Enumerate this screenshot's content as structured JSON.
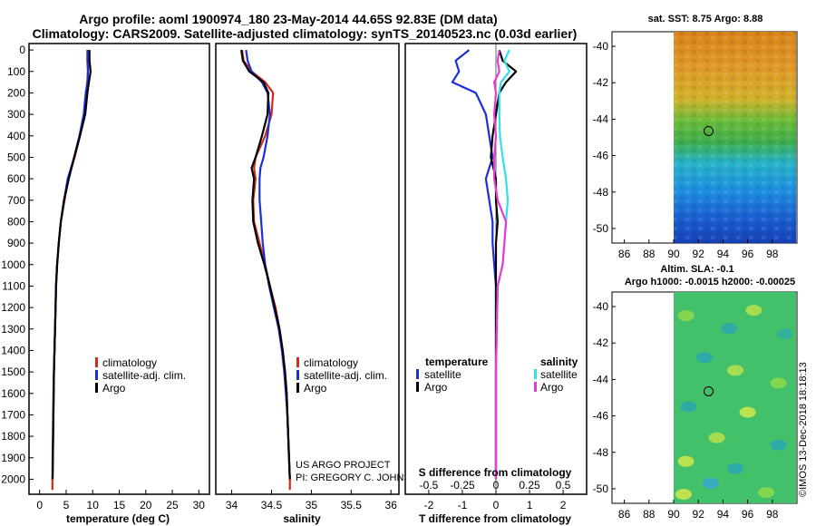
{
  "title_line1": "Argo profile: aoml 1900974_180 23-May-2014 44.65S 92.83E (DM data)",
  "title_line2": "Climatology: CARS2009. Satellite-adjusted climatology: synTS_20140523.nc (0.03d earlier)",
  "depth_ticks": [
    "0",
    "100",
    "200",
    "300",
    "400",
    "500",
    "600",
    "700",
    "800",
    "900",
    "1000",
    "1100",
    "1200",
    "1300",
    "1400",
    "1500",
    "1600",
    "1700",
    "1800",
    "1900",
    "2000"
  ],
  "colors": {
    "climatology": "#d42a1a",
    "satellite": "#1a2fd8",
    "argo": "#000000",
    "sat_s": "#33e0e8",
    "argo_s": "#e83ad8",
    "circle": "#000000"
  },
  "legend_main": [
    "climatology",
    "satellite-adj. clim.",
    "Argo"
  ],
  "diff_legend": {
    "temperature_title": "temperature",
    "salinity_title": "salinity",
    "satellite": "satellite",
    "argo": "Argo"
  },
  "project_credit": [
    "US ARGO PROJECT",
    "PI: GREGORY C. JOHNSON"
  ],
  "imos_credit": "©IMOS 13-Dec-2018 18:18:13",
  "chart_data": [
    {
      "type": "line",
      "title": "",
      "xlabel": "temperature (deg C)",
      "ylabel": "depth",
      "xlim": [
        -2,
        32
      ],
      "ylim": [
        2070,
        -30
      ],
      "xticks": [
        "0",
        "5",
        "10",
        "15",
        "20",
        "25",
        "30"
      ],
      "series": [
        {
          "name": "climatology",
          "points": [
            [
              9.2,
              0
            ],
            [
              9.2,
              50
            ],
            [
              9.1,
              100
            ],
            [
              9.0,
              150
            ],
            [
              8.8,
              200
            ],
            [
              8.4,
              300
            ],
            [
              7.6,
              400
            ],
            [
              6.6,
              500
            ],
            [
              5.4,
              600
            ],
            [
              4.7,
              700
            ],
            [
              4.0,
              800
            ],
            [
              3.6,
              900
            ],
            [
              3.3,
              1000
            ],
            [
              3.1,
              1100
            ],
            [
              3.0,
              1200
            ],
            [
              2.9,
              1300
            ],
            [
              2.8,
              1400
            ],
            [
              2.7,
              1500
            ],
            [
              2.6,
              1600
            ],
            [
              2.55,
              1700
            ],
            [
              2.5,
              1800
            ],
            [
              2.45,
              1900
            ],
            [
              2.4,
              2000
            ],
            [
              2.4,
              2050
            ]
          ]
        },
        {
          "name": "satellite-adj. clim.",
          "points": [
            [
              9.0,
              0
            ],
            [
              9.0,
              50
            ],
            [
              9.1,
              100
            ],
            [
              9.0,
              150
            ],
            [
              8.7,
              200
            ],
            [
              8.3,
              300
            ],
            [
              7.5,
              400
            ],
            [
              6.5,
              500
            ],
            [
              5.3,
              600
            ],
            [
              4.6,
              700
            ],
            [
              4.0,
              800
            ],
            [
              3.6,
              900
            ],
            [
              3.3,
              1000
            ],
            [
              3.1,
              1100
            ],
            [
              3.0,
              1200
            ],
            [
              2.9,
              1300
            ],
            [
              2.8,
              1400
            ],
            [
              2.7,
              1500
            ],
            [
              2.65,
              1600
            ],
            [
              2.6,
              1700
            ],
            [
              2.55,
              1800
            ],
            [
              2.5,
              1900
            ],
            [
              2.45,
              2000
            ]
          ]
        },
        {
          "name": "Argo",
          "points": [
            [
              9.4,
              0
            ],
            [
              9.4,
              50
            ],
            [
              9.6,
              100
            ],
            [
              9.3,
              150
            ],
            [
              9.0,
              200
            ],
            [
              8.6,
              300
            ],
            [
              7.6,
              400
            ],
            [
              6.5,
              500
            ],
            [
              5.5,
              600
            ],
            [
              4.6,
              700
            ],
            [
              4.0,
              800
            ],
            [
              3.6,
              900
            ],
            [
              3.3,
              1000
            ],
            [
              3.1,
              1100
            ],
            [
              3.0,
              1200
            ],
            [
              2.9,
              1300
            ],
            [
              2.8,
              1400
            ],
            [
              2.7,
              1500
            ],
            [
              2.65,
              1600
            ],
            [
              2.6,
              1700
            ],
            [
              2.55,
              1800
            ],
            [
              2.5,
              1900
            ],
            [
              2.45,
              2000
            ]
          ]
        }
      ]
    },
    {
      "type": "line",
      "title": "",
      "xlabel": "salinity",
      "ylabel": "depth",
      "xlim": [
        33.8,
        36.1
      ],
      "ylim": [
        2070,
        -30
      ],
      "xticks": [
        "34",
        "34.5",
        "35",
        "35.5",
        "36"
      ],
      "series": [
        {
          "name": "climatology",
          "points": [
            [
              34.13,
              0
            ],
            [
              34.15,
              50
            ],
            [
              34.25,
              100
            ],
            [
              34.42,
              150
            ],
            [
              34.52,
              200
            ],
            [
              34.5,
              300
            ],
            [
              34.42,
              400
            ],
            [
              34.3,
              500
            ],
            [
              34.28,
              550
            ],
            [
              34.3,
              600
            ],
            [
              34.27,
              700
            ],
            [
              34.28,
              800
            ],
            [
              34.35,
              900
            ],
            [
              34.42,
              1000
            ],
            [
              34.48,
              1100
            ],
            [
              34.55,
              1200
            ],
            [
              34.6,
              1300
            ],
            [
              34.64,
              1400
            ],
            [
              34.67,
              1500
            ],
            [
              34.69,
              1600
            ],
            [
              34.7,
              1700
            ],
            [
              34.71,
              1800
            ],
            [
              34.72,
              1900
            ],
            [
              34.73,
              2000
            ],
            [
              34.73,
              2050
            ]
          ]
        },
        {
          "name": "satellite-adj. clim.",
          "points": [
            [
              34.18,
              0
            ],
            [
              34.2,
              50
            ],
            [
              34.25,
              100
            ],
            [
              34.38,
              150
            ],
            [
              34.45,
              200
            ],
            [
              34.48,
              300
            ],
            [
              34.45,
              400
            ],
            [
              34.4,
              500
            ],
            [
              34.36,
              550
            ],
            [
              34.35,
              600
            ],
            [
              34.35,
              700
            ],
            [
              34.37,
              800
            ],
            [
              34.39,
              900
            ],
            [
              34.42,
              1000
            ],
            [
              34.47,
              1100
            ],
            [
              34.53,
              1200
            ],
            [
              34.59,
              1300
            ],
            [
              34.63,
              1400
            ],
            [
              34.66,
              1500
            ],
            [
              34.68,
              1600
            ],
            [
              34.7,
              1700
            ],
            [
              34.71,
              1800
            ],
            [
              34.72,
              1900
            ],
            [
              34.73,
              2000
            ]
          ]
        },
        {
          "name": "Argo",
          "points": [
            [
              34.12,
              0
            ],
            [
              34.14,
              50
            ],
            [
              34.22,
              100
            ],
            [
              34.4,
              150
            ],
            [
              34.46,
              200
            ],
            [
              34.45,
              300
            ],
            [
              34.38,
              400
            ],
            [
              34.3,
              500
            ],
            [
              34.25,
              550
            ],
            [
              34.28,
              600
            ],
            [
              34.26,
              700
            ],
            [
              34.27,
              800
            ],
            [
              34.33,
              900
            ],
            [
              34.41,
              1000
            ],
            [
              34.48,
              1100
            ],
            [
              34.54,
              1200
            ],
            [
              34.6,
              1300
            ],
            [
              34.64,
              1400
            ],
            [
              34.67,
              1500
            ],
            [
              34.69,
              1600
            ],
            [
              34.7,
              1700
            ],
            [
              34.71,
              1800
            ],
            [
              34.72,
              1900
            ],
            [
              34.73,
              2000
            ]
          ]
        }
      ]
    },
    {
      "type": "line",
      "title": "",
      "xlabel": "T difference from climatology",
      "xlabel_top": "S difference from climatology",
      "ylabel": "depth",
      "xlim": [
        -2.7,
        2.7
      ],
      "ylim": [
        2070,
        -30
      ],
      "xticks": [
        "-2",
        "-1",
        "0",
        "1",
        "2"
      ],
      "xticks_top": [
        "-0.5",
        "-0.25",
        "0",
        "0.25",
        "0.5"
      ],
      "series": [
        {
          "name": "temperature satellite",
          "points": [
            [
              -0.8,
              0
            ],
            [
              -1.2,
              50
            ],
            [
              -1.1,
              100
            ],
            [
              -1.3,
              150
            ],
            [
              -0.6,
              200
            ],
            [
              -0.3,
              300
            ],
            [
              -0.2,
              400
            ],
            [
              -0.1,
              500
            ],
            [
              -0.3,
              600
            ],
            [
              -0.2,
              700
            ],
            [
              -0.1,
              800
            ],
            [
              -0.1,
              900
            ],
            [
              -0.05,
              1000
            ],
            [
              0,
              1100
            ],
            [
              0,
              1500
            ],
            [
              0,
              2000
            ]
          ]
        },
        {
          "name": "temperature Argo",
          "points": [
            [
              0.1,
              0
            ],
            [
              0.2,
              50
            ],
            [
              0.6,
              100
            ],
            [
              0.3,
              150
            ],
            [
              0.1,
              200
            ],
            [
              0.0,
              300
            ],
            [
              -0.1,
              400
            ],
            [
              -0.15,
              500
            ],
            [
              0,
              600
            ],
            [
              0.0,
              700
            ],
            [
              0.05,
              800
            ],
            [
              0.0,
              900
            ],
            [
              0.0,
              1000
            ],
            [
              0.0,
              1500
            ],
            [
              0.0,
              2000
            ]
          ]
        },
        {
          "name": "salinity satellite",
          "points": [
            [
              0.4,
              0
            ],
            [
              0.25,
              50
            ],
            [
              0.4,
              100
            ],
            [
              0.15,
              150
            ],
            [
              0.1,
              200
            ],
            [
              0.1,
              300
            ],
            [
              0.12,
              400
            ],
            [
              0.2,
              500
            ],
            [
              0.3,
              600
            ],
            [
              0.35,
              700
            ],
            [
              0.3,
              800
            ],
            [
              0.25,
              900
            ],
            [
              0.2,
              1000
            ],
            [
              0.05,
              1100
            ],
            [
              0,
              1500
            ],
            [
              0,
              2000
            ]
          ]
        },
        {
          "name": "salinity Argo",
          "points": [
            [
              0.1,
              0
            ],
            [
              0.05,
              50
            ],
            [
              0.1,
              100
            ],
            [
              -0.05,
              150
            ],
            [
              0.0,
              200
            ],
            [
              -0.05,
              300
            ],
            [
              0.0,
              400
            ],
            [
              -0.05,
              500
            ],
            [
              -0.05,
              600
            ],
            [
              0.05,
              700
            ],
            [
              0.3,
              800
            ],
            [
              0.25,
              900
            ],
            [
              0.2,
              1000
            ],
            [
              0.05,
              1100
            ],
            [
              0,
              1500
            ],
            [
              0,
              2000
            ]
          ]
        }
      ]
    },
    {
      "type": "heatmap",
      "title": "sat. SST: 8.75 Argo: 8.88",
      "xlim": [
        85,
        100
      ],
      "ylim": [
        -50.8,
        -39.2
      ],
      "xticks": [
        "86",
        "88",
        "90",
        "92",
        "94",
        "96",
        "98"
      ],
      "yticks": [
        "-40",
        "-42",
        "-44",
        "-46",
        "-48",
        "-50"
      ],
      "profile_location": [
        92.83,
        -44.65
      ],
      "data_extent_lon": [
        90,
        100
      ]
    },
    {
      "type": "heatmap",
      "title": "Altim. SLA: -0.1",
      "subtitle": "Argo h1000: -0.0015 h2000: -0.00025",
      "xlim": [
        85,
        100
      ],
      "ylim": [
        -50.8,
        -39.2
      ],
      "xticks": [
        "86",
        "88",
        "90",
        "92",
        "94",
        "96",
        "98"
      ],
      "yticks": [
        "-40",
        "-42",
        "-44",
        "-46",
        "-48",
        "-50"
      ],
      "profile_location": [
        92.83,
        -44.65
      ],
      "data_extent_lon": [
        90,
        100
      ]
    }
  ]
}
